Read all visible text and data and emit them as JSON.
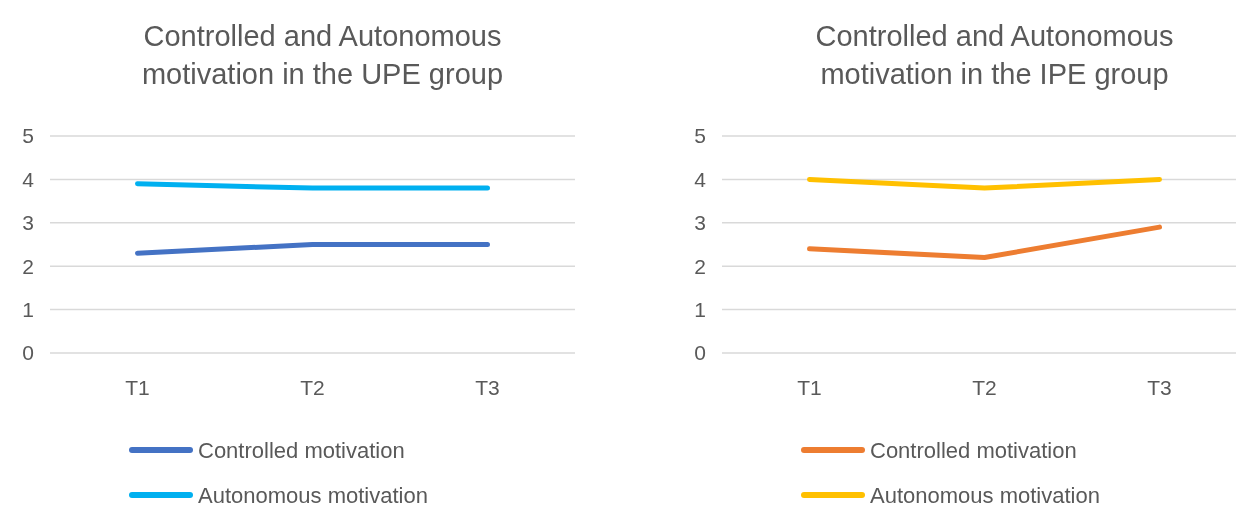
{
  "chart_data": [
    {
      "type": "line",
      "title": "Controlled and Autonomous motivation in the UPE group",
      "categories": [
        "T1",
        "T2",
        "T3"
      ],
      "ylim": [
        0,
        5
      ],
      "yticks": [
        0,
        1,
        2,
        3,
        4,
        5
      ],
      "grid": "y",
      "legend": "bottom",
      "series": [
        {
          "name": "Controlled motivation",
          "color": "#4472c4",
          "values": [
            2.3,
            2.5,
            2.5
          ]
        },
        {
          "name": "Autonomous motivation",
          "color": "#00b0f0",
          "values": [
            3.9,
            3.8,
            3.8
          ]
        }
      ]
    },
    {
      "type": "line",
      "title": "Controlled and Autonomous motivation in the IPE group",
      "categories": [
        "T1",
        "T2",
        "T3"
      ],
      "ylim": [
        0,
        5
      ],
      "yticks": [
        0,
        1,
        2,
        3,
        4,
        5
      ],
      "grid": "y",
      "legend": "bottom",
      "series": [
        {
          "name": "Controlled motivation",
          "color": "#ed7d31",
          "values": [
            2.4,
            2.2,
            2.9
          ]
        },
        {
          "name": "Autonomous motivation",
          "color": "#ffc000",
          "values": [
            4.0,
            3.8,
            4.0
          ]
        }
      ]
    }
  ]
}
